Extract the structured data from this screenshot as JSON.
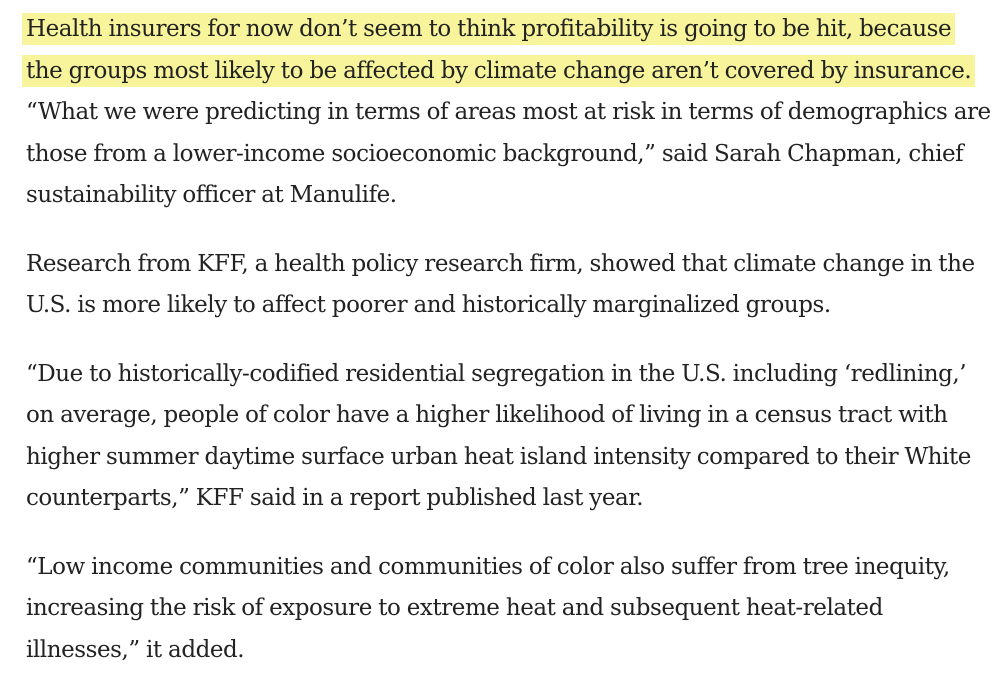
{
  "article": {
    "highlight_color": "#f7f49b",
    "text_color": "#222222",
    "paragraphs": [
      {
        "highlighted": "Health insurers for now don’t seem to think profitability is going to be hit, because the groups most likely to be affected by climate change aren’t covered by insurance.",
        "rest": " “What we were predicting in terms of areas most at risk in terms of demographics are those from a lower-income socioeconomic background,” said Sarah Chapman, chief sustainability officer at Manulife."
      },
      {
        "text": "Research from KFF, a health policy research firm, showed that climate change in the U.S. is more likely to affect poorer and historically marginalized groups."
      },
      {
        "text": "“Due to historically-codified residential segregation in the U.S. including ‘redlining,’ on average, people of color have a higher likelihood of living in a census tract with higher summer daytime surface urban heat island intensity compared to their White counterparts,” KFF said in a report published last year."
      },
      {
        "text": "“Low income communities and communities of color also suffer from tree inequity, increasing the risk of exposure to extreme heat and subsequent heat-related illnesses,” it added."
      }
    ]
  }
}
